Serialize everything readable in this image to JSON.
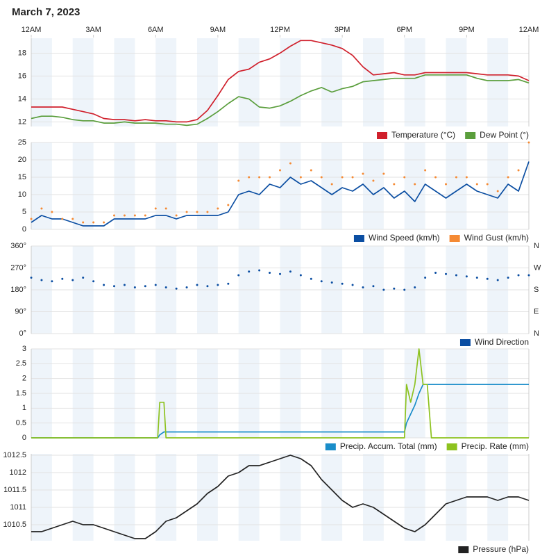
{
  "title": "March 7, 2023",
  "chart_data": [
    {
      "type": "line",
      "xlim": [
        0,
        24
      ],
      "xticks": [
        {
          "value": 0,
          "label": "12AM"
        },
        {
          "value": 3,
          "label": "3AM"
        },
        {
          "value": 6,
          "label": "6AM"
        },
        {
          "value": 9,
          "label": "9AM"
        },
        {
          "value": 12,
          "label": "12PM"
        },
        {
          "value": 15,
          "label": "3PM"
        },
        {
          "value": 18,
          "label": "6PM"
        },
        {
          "value": 21,
          "label": "9PM"
        },
        {
          "value": 24,
          "label": "12AM"
        }
      ],
      "x": [
        0,
        0.5,
        1,
        1.5,
        2,
        2.5,
        3,
        3.5,
        4,
        4.5,
        5,
        5.5,
        6,
        6.5,
        7,
        7.5,
        8,
        8.5,
        9,
        9.5,
        10,
        10.5,
        11,
        11.5,
        12,
        12.5,
        13,
        13.5,
        14,
        14.5,
        15,
        15.5,
        16,
        16.5,
        17,
        17.5,
        18,
        18.5,
        19,
        19.5,
        20,
        20.5,
        21,
        21.5,
        22,
        22.5,
        23,
        23.5,
        24
      ],
      "ylim": [
        11.6,
        19.3
      ],
      "yticks": [
        12,
        14,
        16,
        18
      ],
      "grid": true,
      "series": [
        {
          "name": "Temperature (°C)",
          "color": "#d0202c",
          "values": [
            13.3,
            13.3,
            13.3,
            13.3,
            13.1,
            12.9,
            12.7,
            12.3,
            12.2,
            12.2,
            12.1,
            12.2,
            12.1,
            12.1,
            12.0,
            12.0,
            12.2,
            13.0,
            14.3,
            15.7,
            16.4,
            16.6,
            17.2,
            17.5,
            18.0,
            18.6,
            19.1,
            19.1,
            18.9,
            18.7,
            18.4,
            17.8,
            16.8,
            16.1,
            16.2,
            16.3,
            16.1,
            16.1,
            16.3,
            16.3,
            16.3,
            16.3,
            16.3,
            16.2,
            16.1,
            16.1,
            16.1,
            16.0,
            15.6
          ]
        },
        {
          "name": "Dew Point (°)",
          "color": "#5a9e3c",
          "values": [
            12.3,
            12.5,
            12.5,
            12.4,
            12.2,
            12.1,
            12.1,
            11.9,
            11.9,
            12.0,
            11.9,
            11.9,
            11.9,
            11.8,
            11.8,
            11.7,
            11.8,
            12.3,
            12.9,
            13.6,
            14.2,
            14.0,
            13.3,
            13.2,
            13.4,
            13.8,
            14.3,
            14.7,
            15.0,
            14.6,
            14.9,
            15.1,
            15.5,
            15.6,
            15.7,
            15.8,
            15.8,
            15.8,
            16.1,
            16.1,
            16.1,
            16.1,
            16.1,
            15.8,
            15.6,
            15.6,
            15.6,
            15.7,
            15.4
          ]
        }
      ]
    },
    {
      "type": "line",
      "xlim": [
        0,
        24
      ],
      "x": [
        0,
        0.5,
        1,
        1.5,
        2,
        2.5,
        3,
        3.5,
        4,
        4.5,
        5,
        5.5,
        6,
        6.5,
        7,
        7.5,
        8,
        8.5,
        9,
        9.5,
        10,
        10.5,
        11,
        11.5,
        12,
        12.5,
        13,
        13.5,
        14,
        14.5,
        15,
        15.5,
        16,
        16.5,
        17,
        17.5,
        18,
        18.5,
        19,
        19.5,
        20,
        20.5,
        21,
        21.5,
        22,
        22.5,
        23,
        23.5,
        24
      ],
      "ylim": [
        0,
        25
      ],
      "yticks": [
        0,
        5,
        10,
        15,
        20,
        25
      ],
      "grid": true,
      "series": [
        {
          "name": "Wind Speed (km/h)",
          "color": "#0b4ea2",
          "type": "line",
          "values": [
            2,
            4,
            3,
            3,
            2,
            1,
            1,
            1,
            3,
            3,
            3,
            3,
            4,
            4,
            3,
            4,
            4,
            4,
            4,
            5,
            10,
            11,
            10,
            13,
            12,
            15,
            13,
            14,
            12,
            10,
            12,
            11,
            13,
            10,
            12,
            9,
            11,
            8,
            13,
            11,
            9,
            11,
            13,
            11,
            10,
            9,
            13,
            11,
            19.5
          ]
        },
        {
          "name": "Wind Gust (km/h)",
          "color": "#f58a34",
          "type": "scatter",
          "values": [
            3,
            6,
            5,
            3,
            3,
            2,
            2,
            2,
            4,
            4,
            4,
            4,
            6,
            6,
            4,
            5,
            5,
            5,
            6,
            7,
            14,
            15,
            15,
            15,
            17,
            19,
            15,
            17,
            15,
            13,
            15,
            15,
            16,
            14,
            16,
            13,
            15,
            13,
            17,
            15,
            13,
            15,
            15,
            13,
            13,
            11,
            15,
            17,
            25
          ]
        }
      ]
    },
    {
      "type": "scatter",
      "xlim": [
        0,
        24
      ],
      "x": [
        0,
        0.5,
        1,
        1.5,
        2,
        2.5,
        3,
        3.5,
        4,
        4.5,
        5,
        5.5,
        6,
        6.5,
        7,
        7.5,
        8,
        8.5,
        9,
        9.5,
        10,
        10.5,
        11,
        11.5,
        12,
        12.5,
        13,
        13.5,
        14,
        14.5,
        15,
        15.5,
        16,
        16.5,
        17,
        17.5,
        18,
        18.5,
        19,
        19.5,
        20,
        20.5,
        21,
        21.5,
        22,
        22.5,
        23,
        23.5,
        24
      ],
      "ylim": [
        0,
        360
      ],
      "yticks": [
        {
          "value": 0,
          "label": "0°"
        },
        {
          "value": 90,
          "label": "90°"
        },
        {
          "value": 180,
          "label": "180°"
        },
        {
          "value": 270,
          "label": "270°"
        },
        {
          "value": 360,
          "label": "360°"
        }
      ],
      "y2lim": [
        0,
        360
      ],
      "y2ticks": [
        {
          "value": 0,
          "label": "N"
        },
        {
          "value": 90,
          "label": "E"
        },
        {
          "value": 180,
          "label": "S"
        },
        {
          "value": 270,
          "label": "W"
        },
        {
          "value": 360,
          "label": "N"
        }
      ],
      "grid": true,
      "series": [
        {
          "name": "Wind Direction",
          "color": "#0b4ea2",
          "type": "scatter",
          "values": [
            230,
            220,
            215,
            225,
            220,
            230,
            215,
            200,
            195,
            200,
            190,
            195,
            200,
            190,
            185,
            190,
            200,
            195,
            200,
            205,
            240,
            255,
            260,
            250,
            245,
            255,
            240,
            225,
            215,
            210,
            205,
            200,
            190,
            195,
            180,
            185,
            180,
            190,
            230,
            250,
            245,
            240,
            235,
            230,
            225,
            220,
            230,
            240,
            240
          ]
        }
      ]
    },
    {
      "type": "line",
      "xlim": [
        0,
        24
      ],
      "x": [
        0,
        6.1,
        6.2,
        6.4,
        6.5,
        18.0,
        18.1,
        18.3,
        18.5,
        18.7,
        18.9,
        19.1,
        19.3,
        24
      ],
      "ylim": [
        0,
        3
      ],
      "yticks": [
        0,
        0.5,
        1,
        1.5,
        2,
        2.5,
        3
      ],
      "grid": true,
      "series": [
        {
          "name": "Precip. Accum. Total (mm)",
          "color": "#1a8dc9",
          "type": "line",
          "values": [
            0,
            0,
            0.1,
            0.2,
            0.2,
            0.2,
            0.5,
            0.8,
            1.1,
            1.5,
            1.8,
            1.8,
            1.8,
            1.8
          ]
        },
        {
          "name": "Precip. Rate (mm)",
          "color": "#8dc21f",
          "type": "line",
          "values": [
            0,
            0,
            1.2,
            1.2,
            0,
            0,
            1.8,
            1.2,
            1.8,
            3,
            1.8,
            1.8,
            0,
            0
          ]
        }
      ]
    },
    {
      "type": "line",
      "xlim": [
        0,
        24
      ],
      "x": [
        0,
        0.5,
        1,
        1.5,
        2,
        2.5,
        3,
        3.5,
        4,
        4.5,
        5,
        5.5,
        6,
        6.5,
        7,
        7.5,
        8,
        8.5,
        9,
        9.5,
        10,
        10.5,
        11,
        11.5,
        12,
        12.5,
        13,
        13.5,
        14,
        14.5,
        15,
        15.5,
        16,
        16.5,
        17,
        17.5,
        18,
        18.5,
        19,
        19.5,
        20,
        20.5,
        21,
        21.5,
        22,
        22.5,
        23,
        23.5,
        24
      ],
      "ylim": [
        1010.04,
        1012.54
      ],
      "yticks": [
        1010.5,
        1011,
        1011.5,
        1012,
        1012.5
      ],
      "grid": true,
      "series": [
        {
          "name": "Pressure (hPa)",
          "color": "#222222",
          "type": "line",
          "values": [
            1010.3,
            1010.3,
            1010.4,
            1010.5,
            1010.6,
            1010.5,
            1010.5,
            1010.4,
            1010.3,
            1010.2,
            1010.1,
            1010.1,
            1010.3,
            1010.6,
            1010.7,
            1010.9,
            1011.1,
            1011.4,
            1011.6,
            1011.9,
            1012.0,
            1012.2,
            1012.2,
            1012.3,
            1012.4,
            1012.5,
            1012.4,
            1012.2,
            1011.8,
            1011.5,
            1011.2,
            1011.0,
            1011.1,
            1011.0,
            1010.8,
            1010.6,
            1010.4,
            1010.3,
            1010.5,
            1010.8,
            1011.1,
            1011.2,
            1011.3,
            1011.3,
            1011.3,
            1011.2,
            1011.3,
            1011.3,
            1011.2
          ]
        }
      ]
    }
  ]
}
